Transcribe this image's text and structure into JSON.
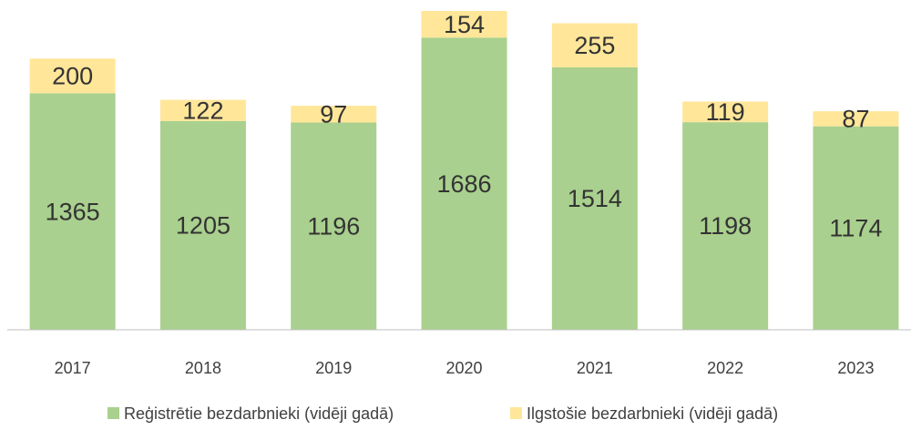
{
  "chart_data": {
    "type": "stacked_bar",
    "categories": [
      "2017",
      "2018",
      "2019",
      "2020",
      "2021",
      "2022",
      "2023"
    ],
    "series": [
      {
        "name": "Reģistrētie bezdarbnieki (vidēji gadā)",
        "color": "#a9d08e",
        "values": [
          1365,
          1205,
          1196,
          1686,
          1514,
          1198,
          1174
        ]
      },
      {
        "name": "Ilgstošie bezdarbnieki (vidēji gadā)",
        "color": "#ffe699",
        "values": [
          200,
          122,
          97,
          154,
          255,
          119,
          87
        ]
      }
    ],
    "legend": "bottom"
  }
}
